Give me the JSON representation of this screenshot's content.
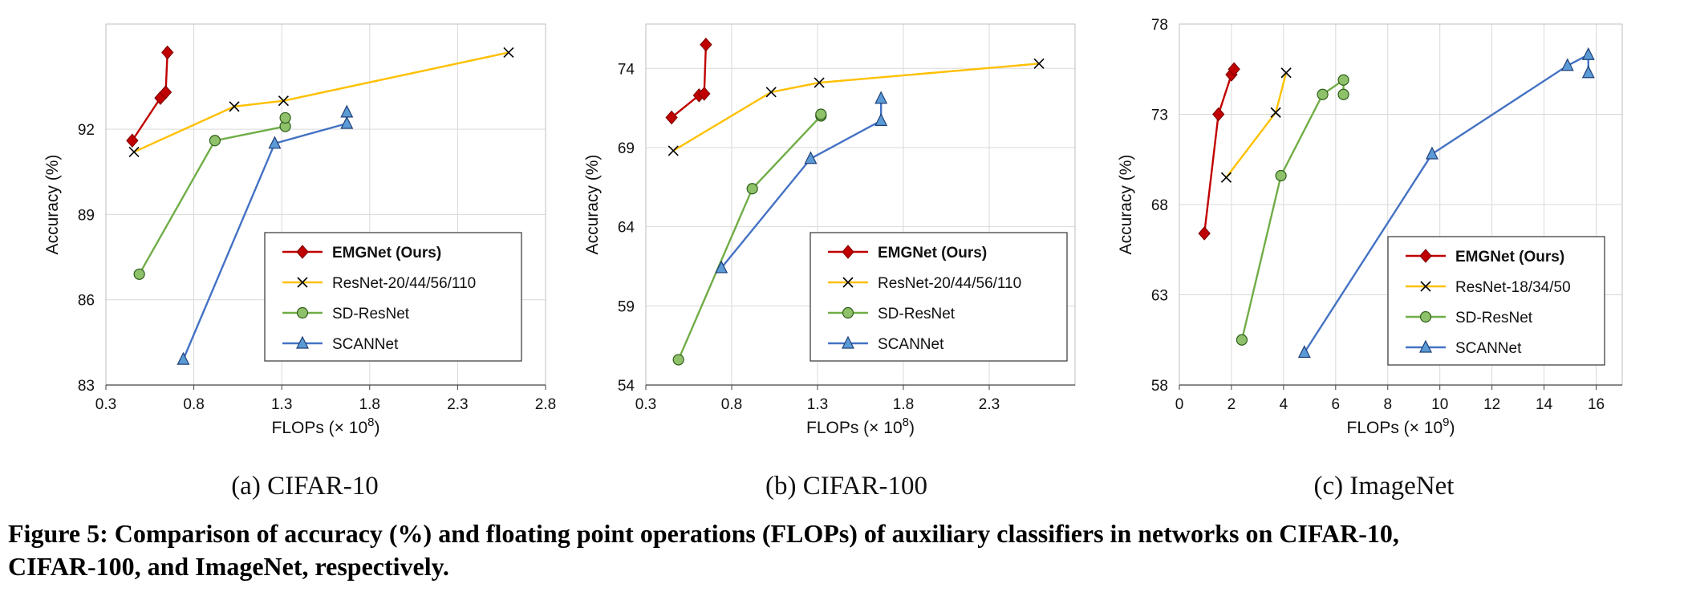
{
  "colors": {
    "emgnet": "#c00000",
    "resnet": "#ffc000",
    "sdresnet": "#70ad47",
    "scannet": "#4472c4",
    "sdresnet_fill": "#8fc16a",
    "scannet_fill": "#5b9bd5"
  },
  "marker_icons": {
    "EMGNet (Ours)": "diamond",
    "ResNet": "x-cross",
    "SD-ResNet": "circle",
    "SCANNet": "triangle"
  },
  "chart_data": [
    {
      "type": "line",
      "caption": "(a) CIFAR-10",
      "xlabel": "FLOPs (× 10",
      "xlabel_exp": "8",
      "xlabel_end": ")",
      "ylabel": "Accuracy (%)",
      "xlim": [
        0.3,
        2.8
      ],
      "ylim": [
        83,
        95.7
      ],
      "xticks": [
        "0.3",
        "0.8",
        "1.3",
        "1.8",
        "2.3",
        "2.8"
      ],
      "yticks": [
        "83",
        "86",
        "89",
        "92"
      ],
      "grid": true,
      "legend_position": "bottom-right",
      "series": [
        {
          "name": "EMGNet (Ours)",
          "legend_bold": true,
          "marker": "diamond",
          "x": [
            0.45,
            0.61,
            0.64,
            0.65
          ],
          "y": [
            91.6,
            93.1,
            93.3,
            94.7
          ],
          "branches": [
            [
              2,
              3
            ]
          ]
        },
        {
          "name": "ResNet-20/44/56/110",
          "marker": "x",
          "x": [
            0.46,
            1.03,
            1.31,
            2.59
          ],
          "y": [
            91.2,
            92.8,
            93.0,
            94.7
          ]
        },
        {
          "name": "SD-ResNet",
          "marker": "circle",
          "x": [
            0.49,
            0.92,
            1.32,
            1.32
          ],
          "y": [
            86.9,
            91.6,
            92.1,
            92.4
          ]
        },
        {
          "name": "SCANNet",
          "marker": "triangle",
          "x": [
            0.74,
            1.26,
            1.67,
            1.67
          ],
          "y": [
            83.9,
            91.5,
            92.2,
            92.6
          ]
        }
      ]
    },
    {
      "type": "line",
      "caption": "(b) CIFAR-100",
      "xlabel": "FLOPs (× 10",
      "xlabel_exp": "8",
      "xlabel_end": ")",
      "ylabel": "Accuracy (%)",
      "xlim": [
        0.3,
        2.8
      ],
      "ylim": [
        54,
        76.8
      ],
      "xticks": [
        "0.3",
        "0.8",
        "1.3",
        "1.8",
        "2.3"
      ],
      "yticks": [
        "54",
        "59",
        "64",
        "69",
        "74"
      ],
      "grid": true,
      "legend_position": "bottom-right",
      "series": [
        {
          "name": "EMGNet (Ours)",
          "legend_bold": true,
          "marker": "diamond",
          "x": [
            0.45,
            0.61,
            0.64,
            0.65
          ],
          "y": [
            70.9,
            72.3,
            72.4,
            75.5
          ],
          "branches": [
            [
              2,
              3
            ]
          ]
        },
        {
          "name": "ResNet-20/44/56/110",
          "marker": "x",
          "x": [
            0.46,
            1.03,
            1.31,
            2.59
          ],
          "y": [
            68.8,
            72.5,
            73.1,
            74.3
          ]
        },
        {
          "name": "SD-ResNet",
          "marker": "circle",
          "x": [
            0.49,
            0.92,
            1.32,
            1.32
          ],
          "y": [
            55.6,
            66.4,
            71.0,
            71.1
          ]
        },
        {
          "name": "SCANNet",
          "marker": "triangle",
          "x": [
            0.74,
            1.26,
            1.67,
            1.67
          ],
          "y": [
            61.4,
            68.3,
            70.7,
            72.1
          ]
        }
      ]
    },
    {
      "type": "line",
      "caption": "(c) ImageNet",
      "xlabel": "FLOPs (× 10",
      "xlabel_exp": "9",
      "xlabel_end": ")",
      "ylabel": "Accuracy (%)",
      "xlim": [
        0,
        17
      ],
      "ylim": [
        58,
        78
      ],
      "xticks": [
        "0",
        "2",
        "4",
        "6",
        "8",
        "10",
        "12",
        "14",
        "16"
      ],
      "yticks": [
        "58",
        "63",
        "68",
        "73",
        "78"
      ],
      "grid": true,
      "legend_position": "bottom-right",
      "series": [
        {
          "name": "EMGNet (Ours)",
          "legend_bold": true,
          "marker": "diamond",
          "x": [
            0.96,
            1.5,
            2.0,
            2.1
          ],
          "y": [
            66.4,
            73.0,
            75.2,
            75.5
          ],
          "branches": [
            [
              2,
              3
            ]
          ]
        },
        {
          "name": "ResNet-18/34/50",
          "marker": "x",
          "x": [
            1.8,
            3.7,
            4.1
          ],
          "y": [
            69.5,
            73.1,
            75.3
          ]
        },
        {
          "name": "SD-ResNet",
          "marker": "circle",
          "x": [
            2.4,
            3.9,
            5.5,
            6.3,
            6.3
          ],
          "y": [
            60.5,
            69.6,
            74.1,
            74.9,
            74.1
          ],
          "branches": [
            [
              3,
              4
            ]
          ]
        },
        {
          "name": "SCANNet",
          "marker": "triangle",
          "x": [
            4.8,
            9.7,
            14.9,
            15.7,
            15.7
          ],
          "y": [
            59.8,
            70.8,
            75.7,
            76.3,
            75.3
          ],
          "branches": [
            [
              3,
              4
            ]
          ]
        }
      ]
    }
  ],
  "figure_caption_line1": "Figure 5: Comparison of accuracy (%) and floating point operations (FLOPs) of auxiliary classifiers in networks on CIFAR-10,",
  "figure_caption_line2": "CIFAR-100, and ImageNet, respectively."
}
